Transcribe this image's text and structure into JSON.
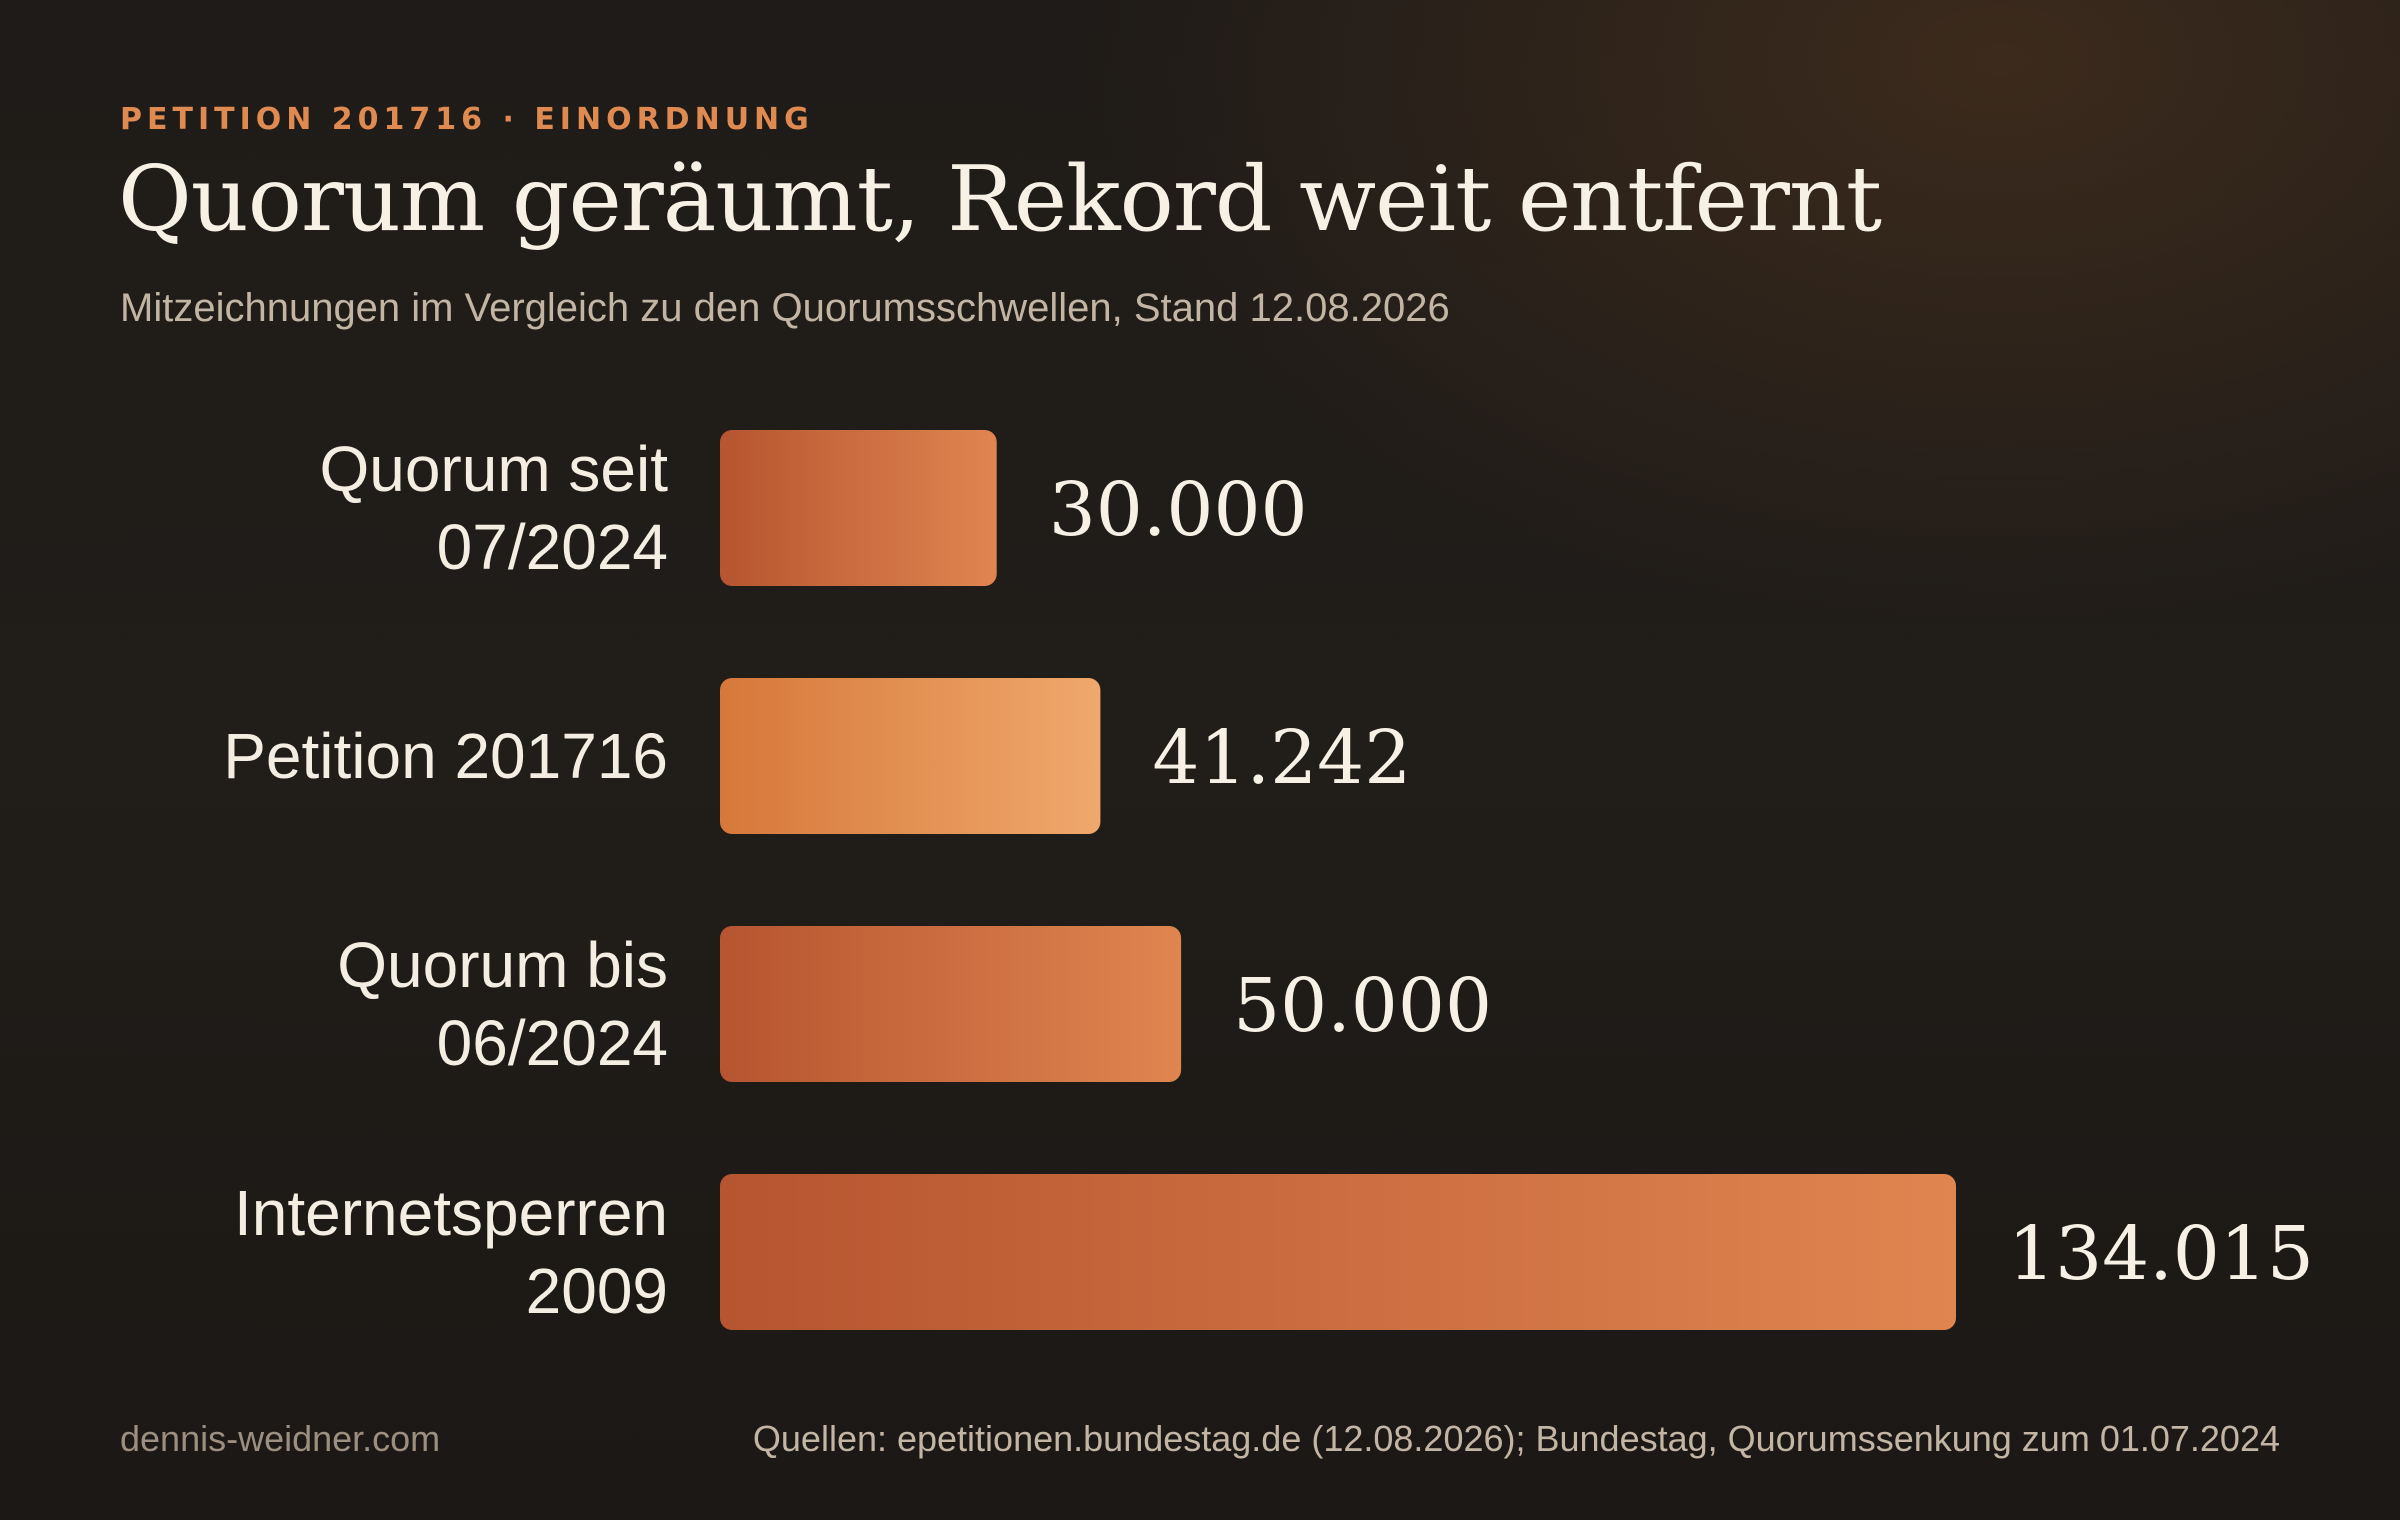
{
  "header": {
    "kicker": "PETITION 201716 · EINORDNUNG",
    "title": "Quorum geräumt, Rekord weit entfernt",
    "subtitle": "Mitzeichnungen im Vergleich zu den Quorumsschwellen, Stand 12.08.2026"
  },
  "chart_data": {
    "type": "bar",
    "orientation": "horizontal",
    "title": "Quorum geräumt, Rekord weit entfernt",
    "subtitle": "Mitzeichnungen im Vergleich zu den Quorumsschwellen, Stand 12.08.2026",
    "categories": [
      [
        "Quorum seit",
        "07/2024"
      ],
      [
        "Petition 201716"
      ],
      [
        "Quorum bis",
        "06/2024"
      ],
      [
        "Internetsperren",
        "2009"
      ]
    ],
    "values": [
      30000,
      41242,
      50000,
      134015
    ],
    "value_labels": [
      "30.000",
      "41.242",
      "50.000",
      "134.015"
    ],
    "highlight_index": 1,
    "xlim": [
      0,
      134015
    ],
    "grid": false,
    "colors": {
      "bar_start": "#b75630",
      "bar_end": "#e08450",
      "highlight_start": "#d6783a",
      "highlight_end": "#f0a86c"
    }
  },
  "footer": {
    "site": "dennis-weidner.com",
    "sources": "Quellen: epetitionen.bundestag.de (12.08.2026); Bundestag, Quorumssenkung zum 01.07.2024"
  }
}
